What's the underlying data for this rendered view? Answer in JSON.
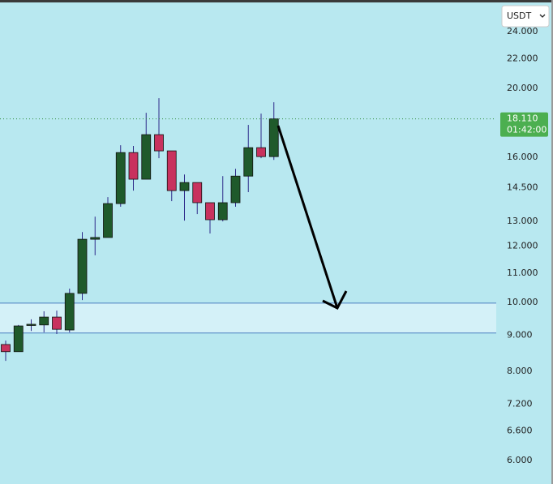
{
  "chart_data": {
    "type": "candlestick",
    "currency": "USDT",
    "open": [
      8730,
      8530,
      9300,
      9300,
      9540,
      9150,
      10300,
      12270,
      12340,
      13770,
      16240,
      14900,
      17210,
      16330,
      14360,
      14740,
      13810,
      13070,
      13810,
      15050,
      16500,
      16030
    ],
    "high": [
      8840,
      9300,
      9470,
      9720,
      9740,
      10460,
      12560,
      13200,
      14060,
      16630,
      16590,
      18470,
      19360,
      16330,
      15130,
      14740,
      13810,
      15050,
      15410,
      17760,
      18420,
      19110
    ],
    "low": [
      8280,
      8530,
      9120,
      9080,
      9030,
      9080,
      10080,
      11650,
      12340,
      13630,
      14360,
      14900,
      15950,
      13880,
      13030,
      13310,
      12500,
      13000,
      13630,
      14290,
      15950,
      15860
    ],
    "close": [
      8530,
      9270,
      9320,
      9540,
      9170,
      10300,
      12270,
      12340,
      13770,
      16240,
      14900,
      17210,
      16330,
      14360,
      14740,
      13810,
      13070,
      13810,
      15050,
      16500,
      16030,
      18110
    ],
    "up_color": "#1f5a2b",
    "down_color": "#c8325e",
    "wick_color": "#2e2a8a",
    "zone": [
      9060,
      9980
    ],
    "zone_color": "#d4f1f8",
    "last_price": 18110,
    "last_price_label": "18.110",
    "countdown": "01:42:00",
    "last_price_color": "#4caf50",
    "log_scale": true,
    "ylim": [
      5560,
      26600
    ],
    "yticks": [
      {
        "value": 24000,
        "label": "24.000"
      },
      {
        "value": 22000,
        "label": "22.000"
      },
      {
        "value": 20000,
        "label": "20.000"
      },
      {
        "value": 16000,
        "label": "16.000"
      },
      {
        "value": 14500,
        "label": "14.500"
      },
      {
        "value": 13000,
        "label": "13.000"
      },
      {
        "value": 12000,
        "label": "12.000"
      },
      {
        "value": 11000,
        "label": "11.000"
      },
      {
        "value": 10000,
        "label": "10.000"
      },
      {
        "value": 9000,
        "label": "9.000"
      },
      {
        "value": 8000,
        "label": "8.000"
      },
      {
        "value": 7200,
        "label": "7.200"
      },
      {
        "value": 6600,
        "label": "6.600"
      },
      {
        "value": 6000,
        "label": "6.000"
      }
    ]
  }
}
